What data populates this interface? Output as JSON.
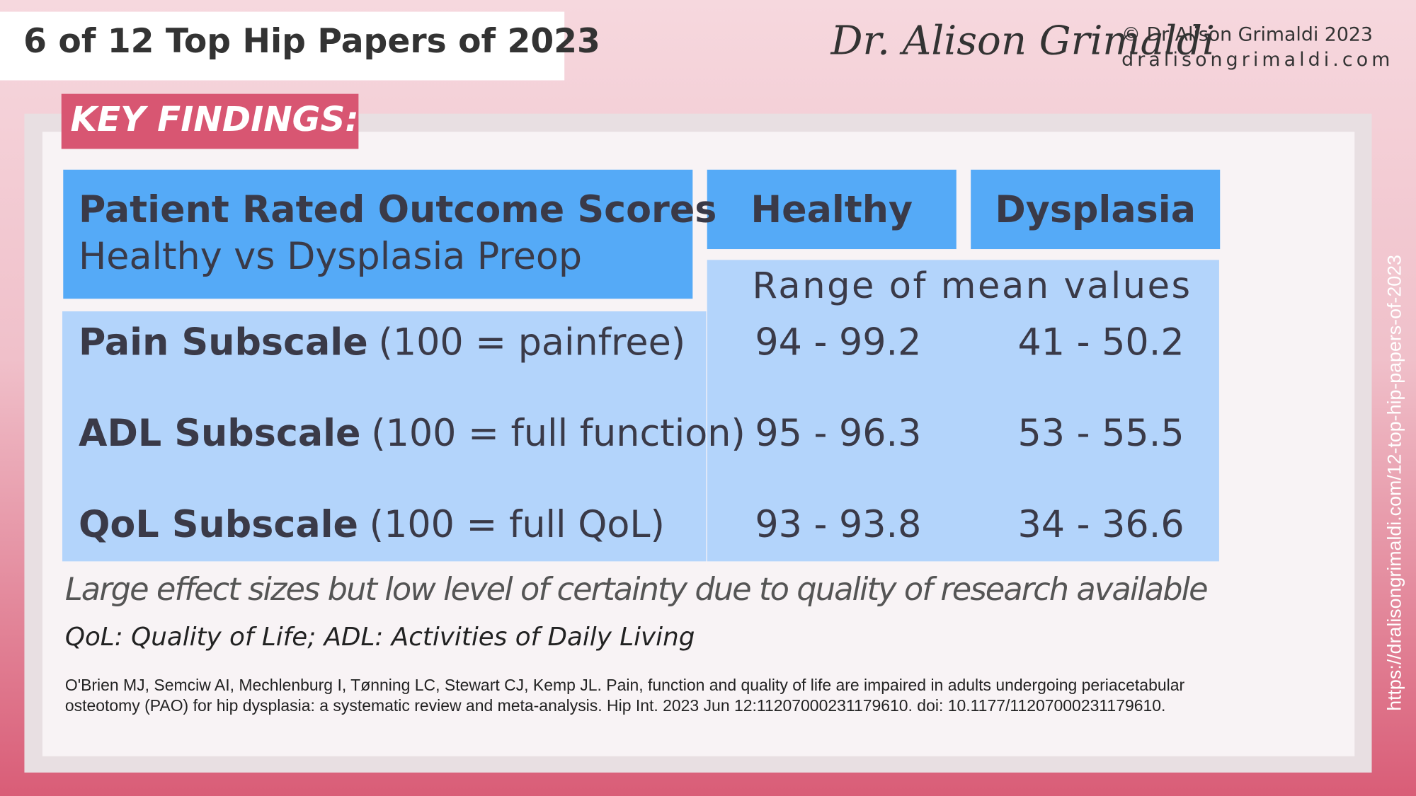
{
  "header": {
    "title": "6 of 12 Top Hip Papers of 2023",
    "logo": "Dr. Alison Grimaldi",
    "copyright": "© Dr Alison Grimaldi 2023",
    "website": "dralisongrimaldi.com"
  },
  "badge": "KEY FINDINGS:",
  "table": {
    "title": "Patient Rated Outcome Scores",
    "subtitle": "Healthy vs Dysplasia Preop",
    "columns": [
      "Healthy",
      "Dysplasia"
    ],
    "range_label": "Range of mean values",
    "rows": [
      {
        "name": "Pain Subscale",
        "note": "(100 = painfree)",
        "healthy": "94 - 99.2",
        "dysplasia": "41 - 50.2"
      },
      {
        "name": "ADL Subscale",
        "note": "(100 = full function)",
        "healthy": "95 - 96.3",
        "dysplasia": "53 - 55.5"
      },
      {
        "name": "QoL Subscale",
        "note": "(100 = full QoL)",
        "healthy": "93 - 93.8",
        "dysplasia": "34 - 36.6"
      }
    ]
  },
  "summary": "Large effect sizes but low level of certainty due to quality of research available",
  "abbreviations": "QoL: Quality of Life; ADL: Activities of Daily Living",
  "citation": "O'Brien MJ, Semciw AI, Mechlenburg I, Tønning LC, Stewart CJ, Kemp JL. Pain, function and quality of life are impaired in adults undergoing periacetabular osteotomy (PAO) for hip dysplasia: a systematic review and meta-analysis. Hip Int. 2023 Jun 12:11207000231179610. doi: 10.1177/11207000231179610.",
  "side_url": "https://dralisongrimaldi.com/12-top-hip-papers-of-2023"
}
